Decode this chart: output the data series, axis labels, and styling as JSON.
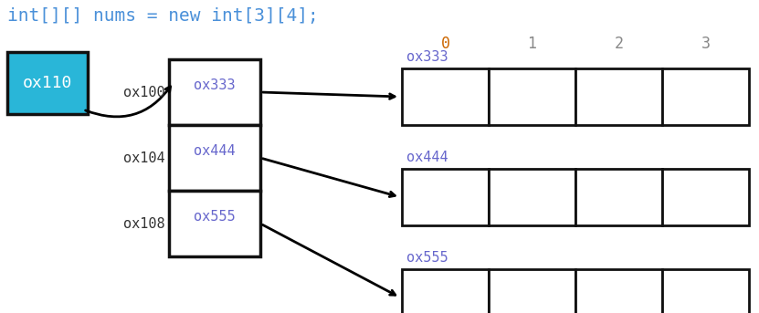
{
  "bg_color": "#ffffff",
  "title_line": "int[][] nums = new int[3][4];",
  "title_color_code": "#4a90d9",
  "ox110_label": "ox110",
  "ox110_bg": "#29b6d8",
  "ox110_text_color": "#ffffff",
  "row_labels": [
    "ox100",
    "ox104",
    "ox108"
  ],
  "row_values": [
    "ox333",
    "ox444",
    "ox555"
  ],
  "col_indices": [
    "0",
    "1",
    "2",
    "3"
  ],
  "col_index_color": "#888888",
  "col_index_0_color": "#cc6600",
  "addr_labels": [
    "ox333",
    "ox444",
    "ox555"
  ],
  "addr_color": "#6666cc",
  "label_color": "#333333",
  "grid_lw": 2.0,
  "pointer_lw": 2.5,
  "figw": 8.31,
  "figh": 3.43,
  "dpi": 100
}
